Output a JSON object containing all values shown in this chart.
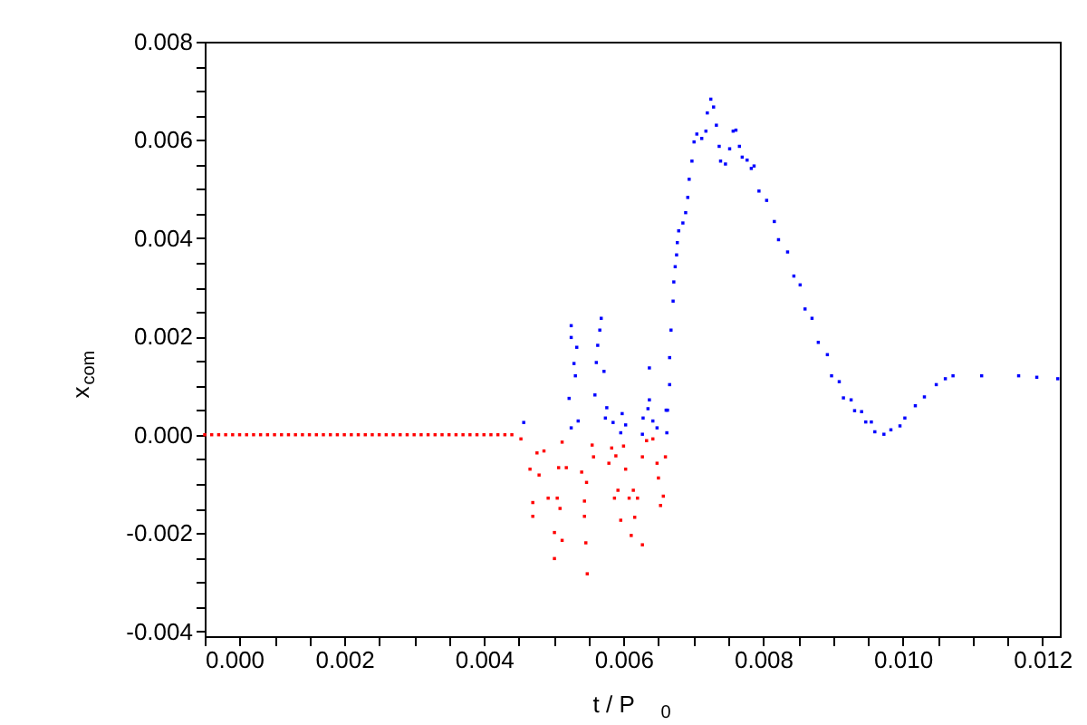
{
  "chart_data": {
    "type": "scatter",
    "xlabel": "t / P$_{0}$",
    "ylabel": "x$_{com}$",
    "xlim": [
      0,
      0.01225
    ],
    "ylim": [
      -0.0041,
      0.008
    ],
    "xticks": [
      {
        "value": 0,
        "label": "0.000"
      },
      {
        "value": 0.0005,
        "label": null
      },
      {
        "value": 0.001,
        "label": null
      },
      {
        "value": 0.0015,
        "label": null
      },
      {
        "value": 0.002,
        "label": "0.002"
      },
      {
        "value": 0.0025,
        "label": null
      },
      {
        "value": 0.003,
        "label": null
      },
      {
        "value": 0.0035,
        "label": null
      },
      {
        "value": 0.004,
        "label": "0.004"
      },
      {
        "value": 0.0045,
        "label": null
      },
      {
        "value": 0.005,
        "label": null
      },
      {
        "value": 0.0055,
        "label": null
      },
      {
        "value": 0.006,
        "label": "0.006"
      },
      {
        "value": 0.0065,
        "label": null
      },
      {
        "value": 0.007,
        "label": null
      },
      {
        "value": 0.0075,
        "label": null
      },
      {
        "value": 0.008,
        "label": "0.008"
      },
      {
        "value": 0.0085,
        "label": null
      },
      {
        "value": 0.009,
        "label": null
      },
      {
        "value": 0.0095,
        "label": null
      },
      {
        "value": 0.01,
        "label": "0.010"
      },
      {
        "value": 0.0105,
        "label": null
      },
      {
        "value": 0.011,
        "label": null
      },
      {
        "value": 0.0115,
        "label": null
      },
      {
        "value": 0.012,
        "label": "0.012"
      }
    ],
    "yticks": [
      {
        "value": -0.004,
        "label": "-0.004"
      },
      {
        "value": -0.0035,
        "label": null
      },
      {
        "value": -0.003,
        "label": null
      },
      {
        "value": -0.0025,
        "label": null
      },
      {
        "value": -0.002,
        "label": "-0.002"
      },
      {
        "value": -0.0015,
        "label": null
      },
      {
        "value": -0.001,
        "label": null
      },
      {
        "value": -0.0005,
        "label": null
      },
      {
        "value": 0,
        "label": "0.000"
      },
      {
        "value": 0.0005,
        "label": null
      },
      {
        "value": 0.001,
        "label": null
      },
      {
        "value": 0.0015,
        "label": null
      },
      {
        "value": 0.002,
        "label": "0.002"
      },
      {
        "value": 0.0025,
        "label": null
      },
      {
        "value": 0.003,
        "label": null
      },
      {
        "value": 0.0035,
        "label": null
      },
      {
        "value": 0.004,
        "label": "0.004"
      },
      {
        "value": 0.0045,
        "label": null
      },
      {
        "value": 0.005,
        "label": null
      },
      {
        "value": 0.0055,
        "label": null
      },
      {
        "value": 0.006,
        "label": "0.006"
      },
      {
        "value": 0.0065,
        "label": null
      },
      {
        "value": 0.007,
        "label": null
      },
      {
        "value": 0.0075,
        "label": null
      },
      {
        "value": 0.008,
        "label": "0.008"
      }
    ],
    "grid": false,
    "legend": false,
    "marker": "square",
    "series": [
      {
        "color": "#ff0000",
        "x": [
          0,
          0.0001,
          0.0002,
          0.0003,
          0.0004,
          0.0005,
          0.0006,
          0.0007,
          0.0008,
          0.0009,
          0.001,
          0.0011,
          0.0012,
          0.0013,
          0.0014,
          0.0015,
          0.0016,
          0.0017,
          0.0018,
          0.0019,
          0.002,
          0.0021,
          0.0022,
          0.0023,
          0.0024,
          0.0025,
          0.0026,
          0.0027,
          0.0028,
          0.0029,
          0.003,
          0.0031,
          0.0032,
          0.0033,
          0.0034,
          0.0035,
          0.0036,
          0.0037,
          0.0038,
          0.0039,
          0.004,
          0.0041,
          0.0042,
          0.0043,
          0.0044,
          0.00453,
          0.00476,
          0.00466,
          0.0047,
          0.0047,
          0.00486,
          0.00479,
          0.00492,
          0.00505,
          0.00501,
          0.00501,
          0.00507,
          0.00512,
          0.00518,
          0.00509,
          0.00512,
          0.0054,
          0.00544,
          0.00547,
          0.00548,
          0.00546,
          0.00555,
          0.00557,
          0.00544,
          0.00579,
          0.00583,
          0.00589,
          0.006,
          0.00603,
          0.00592,
          0.00587,
          0.00608,
          0.00596,
          0.00614,
          0.0062,
          0.00616,
          0.00611,
          0.00627,
          0.00633,
          0.00642,
          0.00627,
          0.00648,
          0.0065,
          0.00657,
          0.00653,
          0.0066
        ],
        "values": [
          0,
          0,
          0,
          0,
          0,
          0,
          0,
          0,
          0,
          0,
          0,
          0,
          0,
          0,
          0,
          0,
          0,
          0,
          0,
          0,
          0,
          0,
          0,
          0,
          0,
          0,
          0,
          0,
          0,
          0,
          0,
          0,
          0,
          0,
          0,
          0,
          0,
          0,
          0,
          0,
          0,
          0,
          0,
          0,
          0,
          -8.5e-05,
          -0.00037,
          -0.0007,
          -0.00138,
          -0.00166,
          -0.00033,
          -0.00082,
          -0.00129,
          -0.00129,
          -0.00199,
          -0.00252,
          -0.00067,
          -0.00015,
          -0.00067,
          -0.0015,
          -0.00215,
          -0.00076,
          -0.00135,
          -0.00097,
          -0.00283,
          -0.0022,
          -0.00021,
          -0.00045,
          -0.00166,
          -0.00058,
          -0.00027,
          -0.00043,
          -0.00023,
          -0.0007,
          -0.00113,
          -0.00129,
          -0.00129,
          -0.00174,
          -0.00113,
          -0.00129,
          -0.00168,
          -0.00205,
          -0.00224,
          -0.00012,
          -8.5e-05,
          -0.00045,
          -0.00058,
          -0.00088,
          -0.00125,
          -0.00144,
          -0.00045
        ]
      },
      {
        "color": "#0000ff",
        "x": [
          0.00457,
          0.00525,
          0.00525,
          0.00533,
          0.00529,
          0.00531,
          0.00522,
          0.00535,
          0.00525,
          0.00568,
          0.00566,
          0.00563,
          0.00561,
          0.00572,
          0.00559,
          0.00576,
          0.00574,
          0.00585,
          0.00598,
          0.00596,
          0.00603,
          0.00637,
          0.00637,
          0.00635,
          0.00628,
          0.00627,
          0.00642,
          0.00648,
          0.00661,
          0.00662,
          0.00663,
          0.00666,
          0.00666,
          0.00668,
          0.00671,
          0.00672,
          0.00674,
          0.00676,
          0.00677,
          0.00679,
          0.00685,
          0.00689,
          0.00692,
          0.00694,
          0.00698,
          0.00701,
          0.00705,
          0.00712,
          0.00718,
          0.0072,
          0.00725,
          0.00729,
          0.00733,
          0.00737,
          0.00739,
          0.00746,
          0.00752,
          0.00757,
          0.00761,
          0.00766,
          0.0077,
          0.00777,
          0.00783,
          0.00787,
          0.00794,
          0.00805,
          0.00816,
          0.00822,
          0.00835,
          0.00844,
          0.00853,
          0.0086,
          0.0087,
          0.00879,
          0.00892,
          0.00898,
          0.00909,
          0.00915,
          0.00926,
          0.00931,
          0.00941,
          0.00947,
          0.00955,
          0.0096,
          0.00973,
          0.00983,
          0.00996,
          0.01003,
          0.01018,
          0.01031,
          0.01048,
          0.01061,
          0.01072,
          0.01113,
          0.01166,
          0.01192,
          0.01222
        ],
        "values": [
          0.00025,
          0.00222,
          0.00198,
          0.00178,
          0.00145,
          0.0012,
          0.00074,
          0.00028,
          0.00014,
          0.00237,
          0.00213,
          0.00182,
          0.00147,
          0.00129,
          0.00081,
          0.00055,
          0.00034,
          0.00025,
          0.00043,
          4e-05,
          0.0002,
          0.00136,
          0.00071,
          0.00053,
          0.00034,
          1e-05,
          0.00028,
          0.00014,
          0.0005,
          4e-05,
          0.0005,
          0.00102,
          0.00157,
          0.00213,
          0.00272,
          0.00311,
          0.00342,
          0.00366,
          0.00391,
          0.00415,
          0.00431,
          0.00452,
          0.00483,
          0.0052,
          0.00557,
          0.00596,
          0.00612,
          0.00603,
          0.00618,
          0.00655,
          0.00683,
          0.00667,
          0.0063,
          0.00587,
          0.00557,
          0.00551,
          0.00582,
          0.00618,
          0.0062,
          0.00587,
          0.00565,
          0.00559,
          0.00542,
          0.00547,
          0.00496,
          0.00477,
          0.00434,
          0.00397,
          0.00372,
          0.00323,
          0.00305,
          0.00256,
          0.00237,
          0.00188,
          0.00163,
          0.0012,
          0.00108,
          0.00075,
          0.00071,
          0.00049,
          0.00047,
          0.00026,
          0.00026,
          6e-05,
          1e-05,
          0.0001,
          0.00018,
          0.00034,
          0.00059,
          0.00077,
          0.00102,
          0.00114,
          0.0012,
          0.0012,
          0.0012,
          0.00117,
          0.00114
        ]
      }
    ]
  }
}
